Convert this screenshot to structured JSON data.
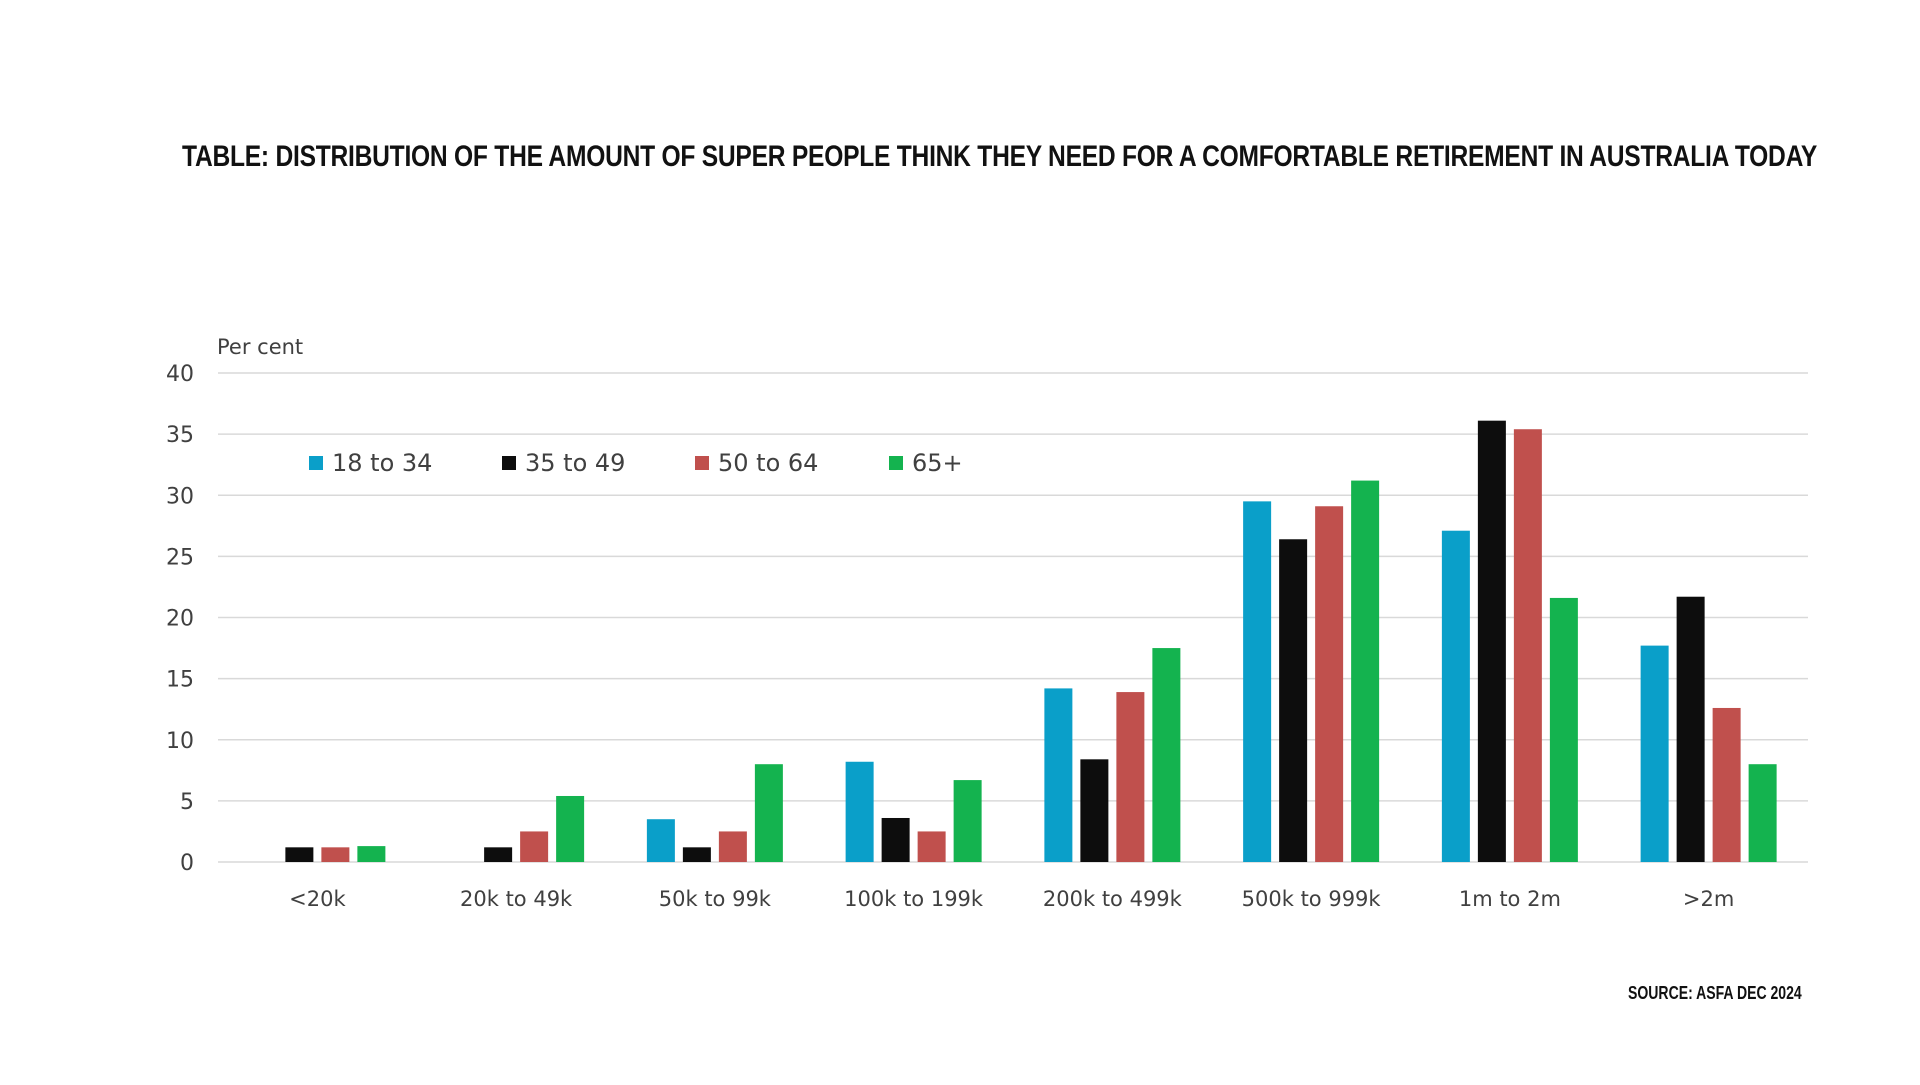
{
  "page": {
    "title": "TABLE: DISTRIBUTION OF THE AMOUNT OF SUPER PEOPLE THINK THEY NEED FOR A COMFORTABLE RETIREMENT IN AUSTRALIA TODAY",
    "source": "SOURCE: ASFA DEC 2024"
  },
  "chart_data": {
    "type": "bar",
    "title": "",
    "ylabel": "Per cent",
    "xlabel": "",
    "ylim": [
      0,
      40
    ],
    "yticks": [
      0,
      5,
      10,
      15,
      20,
      25,
      30,
      35,
      40
    ],
    "grid": true,
    "legend_position": "top-left",
    "categories": [
      "<20k",
      "20k to 49k",
      "50k to 99k",
      "100k to 199k",
      "200k to 499k",
      "500k to 999k",
      "1m to 2m",
      ">2m"
    ],
    "series": [
      {
        "name": "18 to 34",
        "color": "#0a9fc9",
        "values": [
          0,
          0,
          3.5,
          8.2,
          14.2,
          29.5,
          27.1,
          17.7
        ]
      },
      {
        "name": "35 to 49",
        "color": "#0d0d0d",
        "values": [
          1.2,
          1.2,
          1.2,
          3.6,
          8.4,
          26.4,
          36.1,
          21.7
        ]
      },
      {
        "name": "50 to 64",
        "color": "#c0504d",
        "values": [
          1.2,
          2.5,
          2.5,
          2.5,
          13.9,
          29.1,
          35.4,
          12.6
        ]
      },
      {
        "name": "65+",
        "color": "#14b34f",
        "values": [
          1.3,
          5.4,
          8.0,
          6.7,
          17.5,
          31.2,
          21.6,
          8.0
        ]
      }
    ]
  }
}
